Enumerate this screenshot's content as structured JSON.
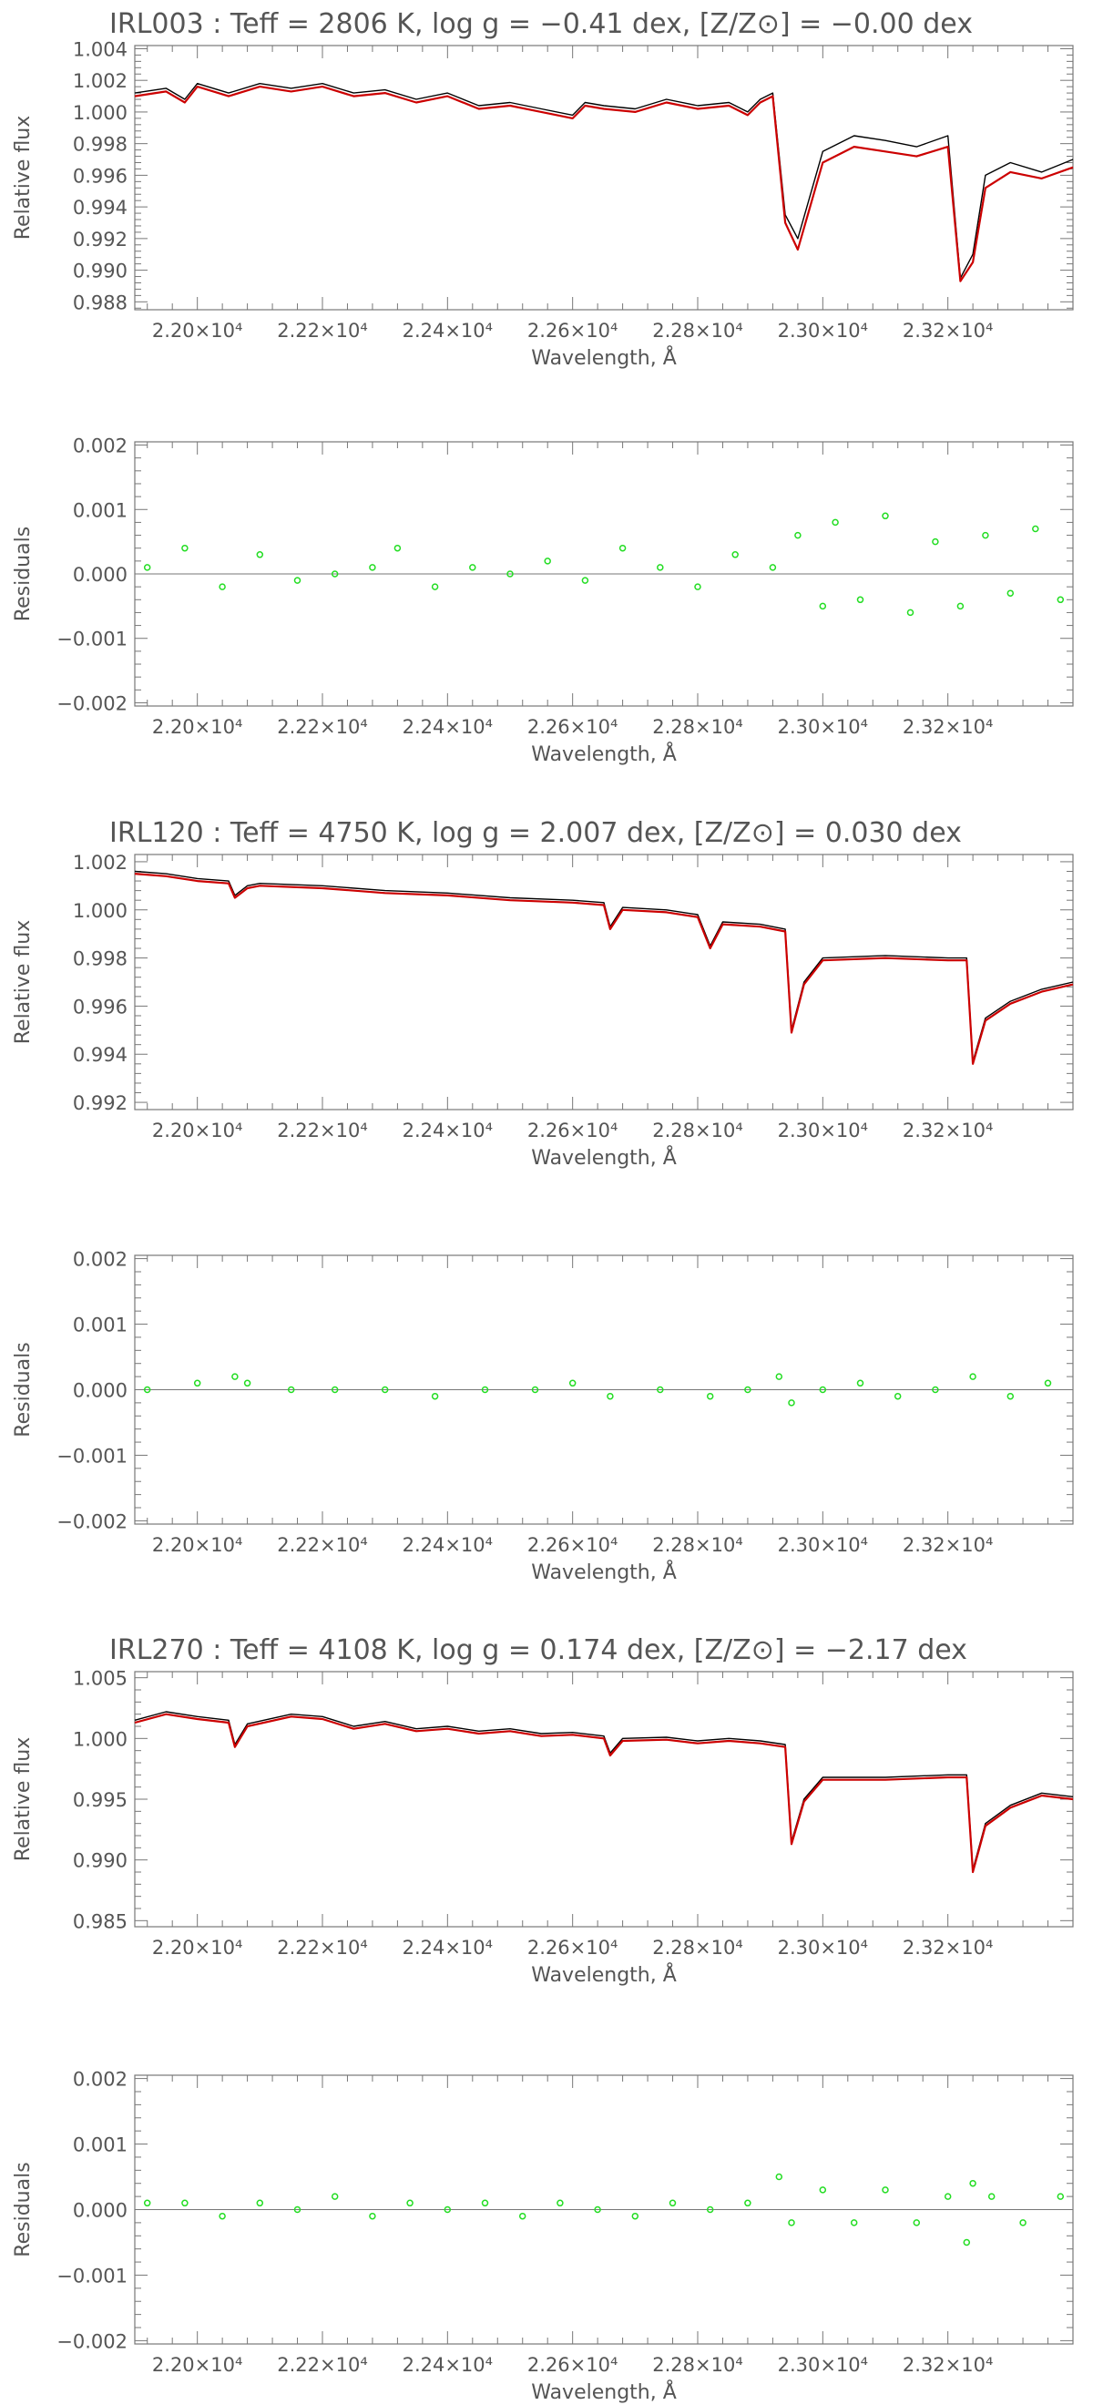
{
  "chart_data": [
    {
      "type": "line",
      "title": "IRL003 : Teff = 2806 K, log g = −0.41 dex, [Z/Z⊙] = −0.00 dex",
      "xlabel": "Wavelength, Å",
      "ylabel": "Relative flux",
      "xlim": [
        21900,
        23400
      ],
      "ylim": [
        0.9875,
        1.0042
      ],
      "xticks": [
        22000,
        22200,
        22400,
        22600,
        22800,
        23000,
        23200
      ],
      "xtick_labels": [
        "2.20×10⁴",
        "2.22×10⁴",
        "2.24×10⁴",
        "2.26×10⁴",
        "2.28×10⁴",
        "2.30×10⁴",
        "2.32×10⁴"
      ],
      "yticks": [
        0.988,
        0.99,
        0.992,
        0.994,
        0.996,
        0.998,
        1.0,
        1.002,
        1.004
      ],
      "ytick_labels": [
        "0.988",
        "0.990",
        "0.992",
        "0.994",
        "0.996",
        "0.998",
        "1.000",
        "1.002",
        "1.004"
      ],
      "series": [
        {
          "color": "#000000",
          "style": "line",
          "x": [
            21900,
            21950,
            21980,
            22000,
            22050,
            22100,
            22150,
            22200,
            22250,
            22300,
            22350,
            22400,
            22450,
            22500,
            22550,
            22600,
            22620,
            22650,
            22700,
            22750,
            22800,
            22850,
            22880,
            22900,
            22920,
            22940,
            22960,
            23000,
            23050,
            23100,
            23150,
            23200,
            23220,
            23240,
            23260,
            23300,
            23350,
            23400
          ],
          "y": [
            1.0012,
            1.0015,
            1.0008,
            1.0018,
            1.0012,
            1.0018,
            1.0015,
            1.0018,
            1.0012,
            1.0014,
            1.0008,
            1.0012,
            1.0004,
            1.0006,
            1.0002,
            0.9998,
            1.0006,
            1.0004,
            1.0002,
            1.0008,
            1.0004,
            1.0006,
            1.0,
            1.0008,
            1.0012,
            0.9935,
            0.992,
            0.9975,
            0.9985,
            0.9982,
            0.9978,
            0.9985,
            0.9895,
            0.991,
            0.996,
            0.9968,
            0.9962,
            0.997
          ]
        },
        {
          "color": "#cc0000",
          "style": "line",
          "x": [
            21900,
            21950,
            21980,
            22000,
            22050,
            22100,
            22150,
            22200,
            22250,
            22300,
            22350,
            22400,
            22450,
            22500,
            22550,
            22600,
            22620,
            22650,
            22700,
            22750,
            22800,
            22850,
            22880,
            22900,
            22920,
            22940,
            22960,
            23000,
            23050,
            23100,
            23150,
            23200,
            23220,
            23240,
            23260,
            23300,
            23350,
            23400
          ],
          "y": [
            1.001,
            1.0013,
            1.0006,
            1.0016,
            1.001,
            1.0016,
            1.0013,
            1.0016,
            1.001,
            1.0012,
            1.0006,
            1.001,
            1.0002,
            1.0004,
            1.0,
            0.9996,
            1.0004,
            1.0002,
            1.0,
            1.0006,
            1.0002,
            1.0004,
            0.9998,
            1.0006,
            1.001,
            0.993,
            0.9913,
            0.9968,
            0.9978,
            0.9975,
            0.9972,
            0.9978,
            0.9893,
            0.9905,
            0.9952,
            0.9962,
            0.9958,
            0.9965
          ]
        }
      ]
    },
    {
      "type": "scatter",
      "title": "",
      "xlabel": "Wavelength, Å",
      "ylabel": "Residuals",
      "xlim": [
        21900,
        23400
      ],
      "ylim": [
        -0.00205,
        0.00205
      ],
      "xticks": [
        22000,
        22200,
        22400,
        22600,
        22800,
        23000,
        23200
      ],
      "xtick_labels": [
        "2.20×10⁴",
        "2.22×10⁴",
        "2.24×10⁴",
        "2.26×10⁴",
        "2.28×10⁴",
        "2.30×10⁴",
        "2.32×10⁴"
      ],
      "yticks": [
        -0.002,
        -0.001,
        0.0,
        0.001,
        0.002
      ],
      "ytick_labels": [
        "−0.002",
        "−0.001",
        "0.000",
        "0.001",
        "0.002"
      ],
      "zero_line": true,
      "series": [
        {
          "color": "#22dd22",
          "style": "points",
          "x": [
            21920,
            21980,
            22040,
            22100,
            22160,
            22220,
            22280,
            22320,
            22380,
            22440,
            22500,
            22560,
            22620,
            22680,
            22740,
            22800,
            22860,
            22920,
            22960,
            23000,
            23020,
            23060,
            23100,
            23140,
            23180,
            23220,
            23260,
            23300,
            23340,
            23380
          ],
          "y": [
            0.0001,
            0.0004,
            -0.0002,
            0.0003,
            -0.0001,
            0.0,
            0.0001,
            0.0004,
            -0.0002,
            0.0001,
            0.0,
            0.0002,
            -0.0001,
            0.0004,
            0.0001,
            -0.0002,
            0.0003,
            0.0001,
            0.0006,
            -0.0005,
            0.0008,
            -0.0004,
            0.0009,
            -0.0006,
            0.0005,
            -0.0005,
            0.0006,
            -0.0003,
            0.0007,
            -0.0004
          ]
        }
      ]
    },
    {
      "type": "line",
      "title": "IRL120 : Teff = 4750 K, log g = 2.007 dex, [Z/Z⊙] = 0.030 dex",
      "xlabel": "Wavelength, Å",
      "ylabel": "Relative flux",
      "xlim": [
        21900,
        23400
      ],
      "ylim": [
        0.9917,
        1.0023
      ],
      "xticks": [
        22000,
        22200,
        22400,
        22600,
        22800,
        23000,
        23200
      ],
      "xtick_labels": [
        "2.20×10⁴",
        "2.22×10⁴",
        "2.24×10⁴",
        "2.26×10⁴",
        "2.28×10⁴",
        "2.30×10⁴",
        "2.32×10⁴"
      ],
      "yticks": [
        0.992,
        0.994,
        0.996,
        0.998,
        1.0,
        1.002
      ],
      "ytick_labels": [
        "0.992",
        "0.994",
        "0.996",
        "0.998",
        "1.000",
        "1.002"
      ],
      "series": [
        {
          "color": "#000000",
          "style": "line",
          "x": [
            21900,
            21950,
            22000,
            22050,
            22060,
            22080,
            22100,
            22200,
            22300,
            22400,
            22500,
            22600,
            22650,
            22660,
            22680,
            22750,
            22800,
            22820,
            22840,
            22900,
            22940,
            22950,
            22970,
            23000,
            23100,
            23200,
            23230,
            23240,
            23260,
            23300,
            23350,
            23400
          ],
          "y": [
            1.0016,
            1.0015,
            1.0013,
            1.0012,
            1.0006,
            1.001,
            1.0011,
            1.001,
            1.0008,
            1.0007,
            1.0005,
            1.0004,
            1.0003,
            0.9993,
            1.0001,
            1.0,
            0.9998,
            0.9985,
            0.9995,
            0.9994,
            0.9992,
            0.995,
            0.997,
            0.998,
            0.9981,
            0.998,
            0.998,
            0.9937,
            0.9955,
            0.9962,
            0.9967,
            0.997
          ]
        },
        {
          "color": "#cc0000",
          "style": "line",
          "x": [
            21900,
            21950,
            22000,
            22050,
            22060,
            22080,
            22100,
            22200,
            22300,
            22400,
            22500,
            22600,
            22650,
            22660,
            22680,
            22750,
            22800,
            22820,
            22840,
            22900,
            22940,
            22950,
            22970,
            23000,
            23100,
            23200,
            23230,
            23240,
            23260,
            23300,
            23350,
            23400
          ],
          "y": [
            1.0015,
            1.0014,
            1.0012,
            1.0011,
            1.0005,
            1.0009,
            1.001,
            1.0009,
            1.0007,
            1.0006,
            1.0004,
            1.0003,
            1.0002,
            0.9992,
            1.0,
            0.9999,
            0.9997,
            0.9984,
            0.9994,
            0.9993,
            0.9991,
            0.9949,
            0.9969,
            0.9979,
            0.998,
            0.9979,
            0.9979,
            0.9936,
            0.9954,
            0.9961,
            0.9966,
            0.9969
          ]
        }
      ]
    },
    {
      "type": "scatter",
      "title": "",
      "xlabel": "Wavelength, Å",
      "ylabel": "Residuals",
      "xlim": [
        21900,
        23400
      ],
      "ylim": [
        -0.00205,
        0.00205
      ],
      "xticks": [
        22000,
        22200,
        22400,
        22600,
        22800,
        23000,
        23200
      ],
      "xtick_labels": [
        "2.20×10⁴",
        "2.22×10⁴",
        "2.24×10⁴",
        "2.26×10⁴",
        "2.28×10⁴",
        "2.30×10⁴",
        "2.32×10⁴"
      ],
      "yticks": [
        -0.002,
        -0.001,
        0.0,
        0.001,
        0.002
      ],
      "ytick_labels": [
        "−0.002",
        "−0.001",
        "0.000",
        "0.001",
        "0.002"
      ],
      "zero_line": true,
      "series": [
        {
          "color": "#22dd22",
          "style": "points",
          "x": [
            21920,
            22000,
            22060,
            22080,
            22150,
            22220,
            22300,
            22380,
            22460,
            22540,
            22600,
            22660,
            22740,
            22820,
            22880,
            22930,
            22950,
            23000,
            23060,
            23120,
            23180,
            23240,
            23300,
            23360
          ],
          "y": [
            0.0,
            0.0001,
            0.0002,
            0.0001,
            0.0,
            0.0,
            0.0,
            -0.0001,
            0.0,
            0.0,
            0.0001,
            -0.0001,
            0.0,
            -0.0001,
            0.0,
            0.0002,
            -0.0002,
            0.0,
            0.0001,
            -0.0001,
            0.0,
            0.0002,
            -0.0001,
            0.0001
          ]
        }
      ]
    },
    {
      "type": "line",
      "title": "IRL270 : Teff = 4108 K, log g = 0.174 dex, [Z/Z⊙] = −2.17 dex",
      "xlabel": "Wavelength, Å",
      "ylabel": "Relative flux",
      "xlim": [
        21900,
        23400
      ],
      "ylim": [
        0.9845,
        1.0055
      ],
      "xticks": [
        22000,
        22200,
        22400,
        22600,
        22800,
        23000,
        23200
      ],
      "xtick_labels": [
        "2.20×10⁴",
        "2.22×10⁴",
        "2.24×10⁴",
        "2.26×10⁴",
        "2.28×10⁴",
        "2.30×10⁴",
        "2.32×10⁴"
      ],
      "yticks": [
        0.985,
        0.99,
        0.995,
        1.0,
        1.005
      ],
      "ytick_labels": [
        "0.985",
        "0.990",
        "0.995",
        "1.000",
        "1.005"
      ],
      "series": [
        {
          "color": "#000000",
          "style": "line",
          "x": [
            21900,
            21950,
            22000,
            22050,
            22060,
            22080,
            22150,
            22200,
            22250,
            22300,
            22350,
            22400,
            22450,
            22500,
            22550,
            22600,
            22650,
            22660,
            22680,
            22750,
            22800,
            22850,
            22900,
            22940,
            22950,
            22970,
            23000,
            23100,
            23200,
            23230,
            23240,
            23260,
            23300,
            23350,
            23400
          ],
          "y": [
            1.0015,
            1.0022,
            1.0018,
            1.0015,
            0.9995,
            1.0012,
            1.002,
            1.0018,
            1.001,
            1.0014,
            1.0008,
            1.001,
            1.0006,
            1.0008,
            1.0004,
            1.0005,
            1.0002,
            0.9988,
            1.0,
            1.0001,
            0.9998,
            1.0,
            0.9998,
            0.9995,
            0.9915,
            0.995,
            0.9968,
            0.9968,
            0.997,
            0.997,
            0.9892,
            0.993,
            0.9945,
            0.9955,
            0.9952
          ]
        },
        {
          "color": "#cc0000",
          "style": "line",
          "x": [
            21900,
            21950,
            22000,
            22050,
            22060,
            22080,
            22150,
            22200,
            22250,
            22300,
            22350,
            22400,
            22450,
            22500,
            22550,
            22600,
            22650,
            22660,
            22680,
            22750,
            22800,
            22850,
            22900,
            22940,
            22950,
            22970,
            23000,
            23100,
            23200,
            23230,
            23240,
            23260,
            23300,
            23350,
            23400
          ],
          "y": [
            1.0013,
            1.002,
            1.0016,
            1.0013,
            0.9993,
            1.001,
            1.0018,
            1.0016,
            1.0008,
            1.0012,
            1.0006,
            1.0008,
            1.0004,
            1.0006,
            1.0002,
            1.0003,
            1.0,
            0.9986,
            0.9998,
            0.9999,
            0.9996,
            0.9998,
            0.9996,
            0.9993,
            0.9913,
            0.9948,
            0.9966,
            0.9966,
            0.9968,
            0.9968,
            0.989,
            0.9928,
            0.9943,
            0.9953,
            0.995
          ]
        }
      ]
    },
    {
      "type": "scatter",
      "title": "",
      "xlabel": "Wavelength, Å",
      "ylabel": "Residuals",
      "xlim": [
        21900,
        23400
      ],
      "ylim": [
        -0.00205,
        0.00205
      ],
      "xticks": [
        22000,
        22200,
        22400,
        22600,
        22800,
        23000,
        23200
      ],
      "xtick_labels": [
        "2.20×10⁴",
        "2.22×10⁴",
        "2.24×10⁴",
        "2.26×10⁴",
        "2.28×10⁴",
        "2.30×10⁴",
        "2.32×10⁴"
      ],
      "yticks": [
        -0.002,
        -0.001,
        0.0,
        0.001,
        0.002
      ],
      "ytick_labels": [
        "−0.002",
        "−0.001",
        "0.000",
        "0.001",
        "0.002"
      ],
      "zero_line": true,
      "series": [
        {
          "color": "#22dd22",
          "style": "points",
          "x": [
            21920,
            21980,
            22040,
            22100,
            22160,
            22220,
            22280,
            22340,
            22400,
            22460,
            22520,
            22580,
            22640,
            22700,
            22760,
            22820,
            22880,
            22930,
            22950,
            23000,
            23050,
            23100,
            23150,
            23200,
            23230,
            23240,
            23270,
            23320,
            23380
          ],
          "y": [
            0.0001,
            0.0001,
            -0.0001,
            0.0001,
            0.0,
            0.0002,
            -0.0001,
            0.0001,
            0.0,
            0.0001,
            -0.0001,
            0.0001,
            0.0,
            -0.0001,
            0.0001,
            0.0,
            0.0001,
            0.0005,
            -0.0002,
            0.0003,
            -0.0002,
            0.0003,
            -0.0002,
            0.0002,
            -0.0005,
            0.0004,
            0.0002,
            -0.0002,
            0.0002
          ]
        }
      ]
    }
  ]
}
